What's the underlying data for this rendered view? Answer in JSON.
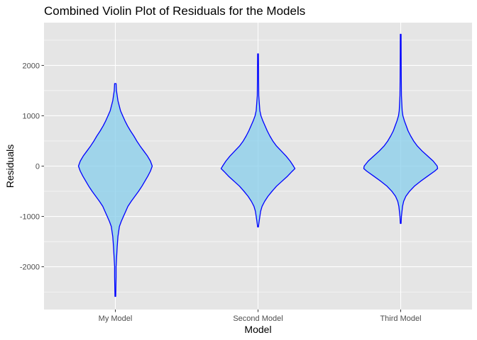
{
  "chart_data": {
    "type": "violin",
    "title": "Combined Violin Plot of Residuals for the Models",
    "xlabel": "Model",
    "ylabel": "Residuals",
    "categories": [
      "My Model",
      "Second Model",
      "Third Model"
    ],
    "ylim": [
      -2850,
      2850
    ],
    "yticks": [
      -2000,
      -1000,
      0,
      1000,
      2000
    ],
    "ytick_labels": [
      "-2000",
      "-1000",
      "0",
      "1000",
      "2000"
    ],
    "grid": true,
    "fill_color": "#87ceeb",
    "fill_opacity": 0.75,
    "outline_color": "#0000ff",
    "panel_color": "#e5e5e5",
    "grid_color": "#ffffff",
    "violins": [
      {
        "category": "My Model",
        "min": -2590,
        "max": 1640,
        "profile": [
          [
            1640,
            0.02
          ],
          [
            1500,
            0.03
          ],
          [
            1300,
            0.07
          ],
          [
            1100,
            0.14
          ],
          [
            1000,
            0.2
          ],
          [
            900,
            0.26
          ],
          [
            800,
            0.33
          ],
          [
            700,
            0.41
          ],
          [
            600,
            0.5
          ],
          [
            500,
            0.58
          ],
          [
            400,
            0.67
          ],
          [
            300,
            0.77
          ],
          [
            200,
            0.87
          ],
          [
            100,
            0.95
          ],
          [
            0,
            1.0
          ],
          [
            -100,
            0.95
          ],
          [
            -200,
            0.88
          ],
          [
            -300,
            0.8
          ],
          [
            -400,
            0.72
          ],
          [
            -500,
            0.63
          ],
          [
            -600,
            0.53
          ],
          [
            -700,
            0.43
          ],
          [
            -800,
            0.34
          ],
          [
            -900,
            0.28
          ],
          [
            -1000,
            0.22
          ],
          [
            -1100,
            0.16
          ],
          [
            -1200,
            0.11
          ],
          [
            -1400,
            0.07
          ],
          [
            -1600,
            0.05
          ],
          [
            -1800,
            0.035
          ],
          [
            -2000,
            0.02
          ],
          [
            -2200,
            0.02
          ],
          [
            -2400,
            0.015
          ],
          [
            -2590,
            0.01
          ]
        ]
      },
      {
        "category": "Second Model",
        "min": -1210,
        "max": 2230,
        "profile": [
          [
            2230,
            0.01
          ],
          [
            1800,
            0.015
          ],
          [
            1400,
            0.02
          ],
          [
            1100,
            0.05
          ],
          [
            1000,
            0.08
          ],
          [
            900,
            0.13
          ],
          [
            800,
            0.19
          ],
          [
            700,
            0.25
          ],
          [
            600,
            0.32
          ],
          [
            500,
            0.4
          ],
          [
            400,
            0.5
          ],
          [
            300,
            0.63
          ],
          [
            200,
            0.76
          ],
          [
            100,
            0.87
          ],
          [
            0,
            0.96
          ],
          [
            -50,
            1.0
          ],
          [
            -100,
            0.93
          ],
          [
            -200,
            0.8
          ],
          [
            -300,
            0.65
          ],
          [
            -400,
            0.5
          ],
          [
            -500,
            0.38
          ],
          [
            -600,
            0.27
          ],
          [
            -700,
            0.18
          ],
          [
            -800,
            0.11
          ],
          [
            -900,
            0.07
          ],
          [
            -1000,
            0.05
          ],
          [
            -1100,
            0.03
          ],
          [
            -1210,
            0.01
          ]
        ]
      },
      {
        "category": "Third Model",
        "min": -1140,
        "max": 2620,
        "profile": [
          [
            2620,
            0.01
          ],
          [
            2200,
            0.012
          ],
          [
            1800,
            0.015
          ],
          [
            1400,
            0.02
          ],
          [
            1100,
            0.04
          ],
          [
            1000,
            0.06
          ],
          [
            900,
            0.1
          ],
          [
            800,
            0.15
          ],
          [
            700,
            0.2
          ],
          [
            600,
            0.27
          ],
          [
            500,
            0.35
          ],
          [
            400,
            0.45
          ],
          [
            300,
            0.58
          ],
          [
            200,
            0.73
          ],
          [
            100,
            0.88
          ],
          [
            0,
            0.99
          ],
          [
            -50,
            1.0
          ],
          [
            -100,
            0.92
          ],
          [
            -200,
            0.73
          ],
          [
            -300,
            0.54
          ],
          [
            -400,
            0.37
          ],
          [
            -500,
            0.24
          ],
          [
            -600,
            0.14
          ],
          [
            -700,
            0.08
          ],
          [
            -800,
            0.05
          ],
          [
            -900,
            0.035
          ],
          [
            -1000,
            0.02
          ],
          [
            -1140,
            0.01
          ]
        ]
      }
    ]
  }
}
